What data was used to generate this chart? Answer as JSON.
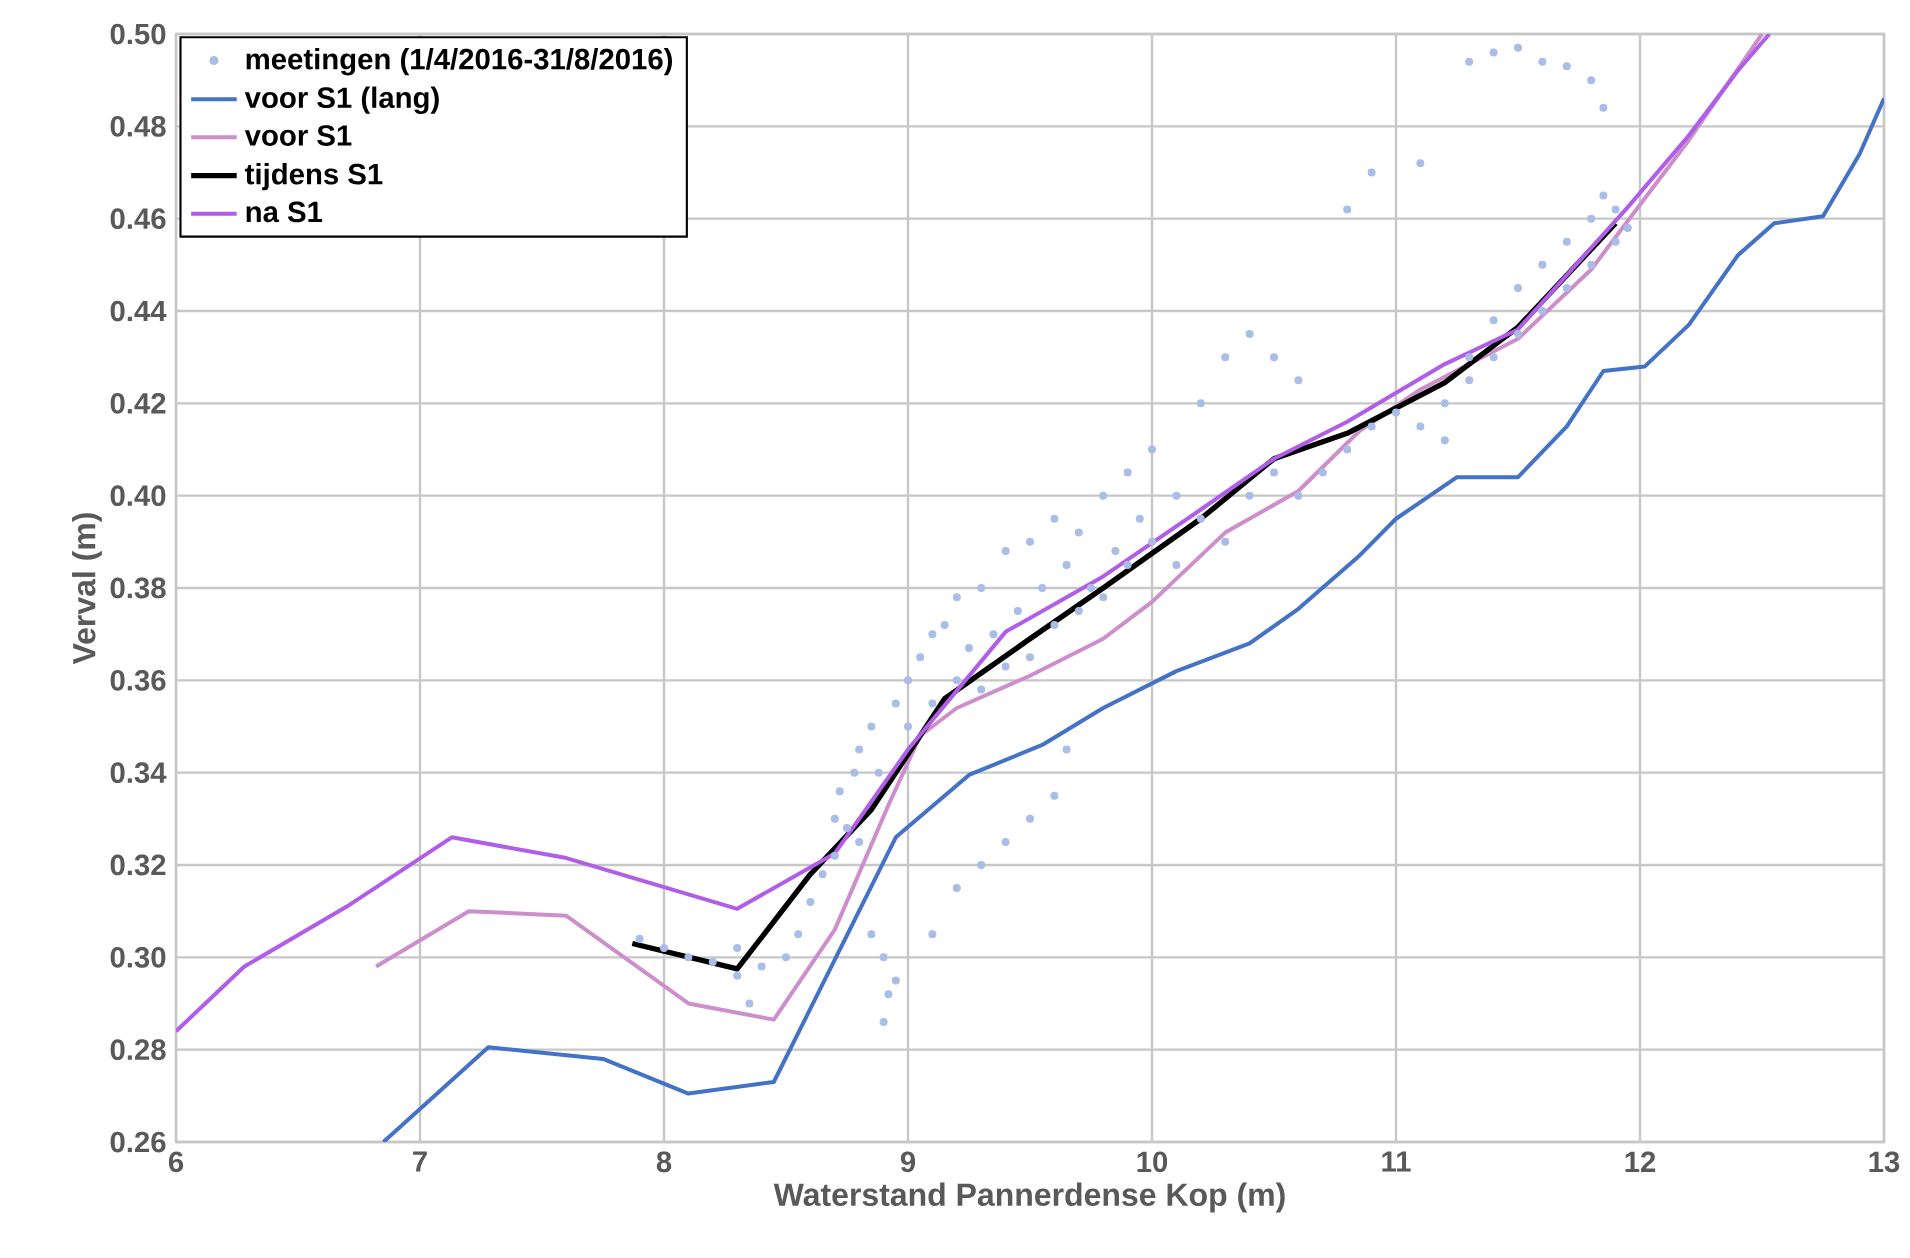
{
  "chart_data": {
    "type": "line",
    "xlabel": "Waterstand Pannerdense Kop (m)",
    "ylabel": "Verval (m)",
    "xlim": [
      6,
      13
    ],
    "xticks": [
      6,
      7,
      8,
      9,
      10,
      11,
      12,
      13
    ],
    "ylim": [
      0.26,
      0.5
    ],
    "yticks": [
      {
        "value": 0.26,
        "label": "0.26"
      },
      {
        "value": 0.28,
        "label": "0.28"
      },
      {
        "value": 0.3,
        "label": "0.30"
      },
      {
        "value": 0.32,
        "label": "0.32"
      },
      {
        "value": 0.34,
        "label": "0.34"
      },
      {
        "value": 0.36,
        "label": "0.36"
      },
      {
        "value": 0.38,
        "label": "0.38"
      },
      {
        "value": 0.4,
        "label": "0.40"
      },
      {
        "value": 0.42,
        "label": "0.42"
      },
      {
        "value": 0.44,
        "label": "0.44"
      },
      {
        "value": 0.46,
        "label": "0.46"
      },
      {
        "value": 0.48,
        "label": "0.48"
      },
      {
        "value": 0.5,
        "label": "0.50"
      }
    ],
    "grid": true,
    "legend": "top left",
    "series": [
      {
        "name": "meetingen (1/4/2016-31/8/2016)",
        "type": "scatter",
        "color": "#a9bde6",
        "x": [
          7.9,
          8.0,
          8.1,
          8.2,
          8.3,
          8.3,
          8.35,
          8.4,
          8.5,
          8.55,
          8.6,
          8.65,
          8.7,
          8.7,
          8.72,
          8.75,
          8.78,
          8.8,
          8.8,
          8.85,
          8.88,
          8.9,
          8.9,
          8.92,
          8.95,
          9.0,
          9.0,
          9.05,
          9.1,
          9.1,
          9.15,
          9.2,
          9.2,
          9.25,
          9.3,
          9.3,
          9.35,
          9.4,
          9.4,
          9.45,
          9.5,
          9.5,
          9.55,
          9.6,
          9.6,
          9.65,
          9.7,
          9.7,
          9.75,
          9.8,
          9.8,
          9.85,
          9.9,
          9.9,
          9.95,
          10.0,
          10.0,
          10.1,
          10.1,
          10.2,
          10.2,
          10.3,
          10.3,
          10.4,
          10.4,
          10.5,
          10.5,
          10.6,
          10.6,
          10.7,
          10.8,
          10.9,
          11.0,
          11.1,
          11.2,
          11.2,
          11.3,
          11.3,
          11.4,
          11.4,
          11.5,
          11.5,
          11.6,
          11.6,
          11.7,
          11.7,
          11.8,
          11.8,
          11.85,
          11.9,
          11.9,
          11.95,
          11.3,
          11.4,
          11.5,
          11.6,
          11.7,
          11.8,
          11.85,
          10.8,
          10.9,
          11.1,
          9.3,
          9.4,
          9.5,
          9.6,
          9.65,
          9.2,
          9.1,
          8.95,
          8.85
        ],
        "values": [
          0.304,
          0.302,
          0.3,
          0.299,
          0.296,
          0.302,
          0.29,
          0.298,
          0.3,
          0.305,
          0.312,
          0.318,
          0.322,
          0.33,
          0.336,
          0.328,
          0.34,
          0.345,
          0.325,
          0.35,
          0.34,
          0.3,
          0.286,
          0.292,
          0.355,
          0.35,
          0.36,
          0.365,
          0.355,
          0.37,
          0.372,
          0.36,
          0.378,
          0.367,
          0.358,
          0.38,
          0.37,
          0.363,
          0.388,
          0.375,
          0.365,
          0.39,
          0.38,
          0.372,
          0.395,
          0.385,
          0.375,
          0.392,
          0.38,
          0.378,
          0.4,
          0.388,
          0.385,
          0.405,
          0.395,
          0.39,
          0.41,
          0.385,
          0.4,
          0.395,
          0.42,
          0.39,
          0.43,
          0.4,
          0.435,
          0.405,
          0.43,
          0.4,
          0.425,
          0.405,
          0.41,
          0.415,
          0.418,
          0.415,
          0.42,
          0.412,
          0.425,
          0.43,
          0.43,
          0.438,
          0.435,
          0.445,
          0.44,
          0.45,
          0.445,
          0.455,
          0.45,
          0.46,
          0.465,
          0.455,
          0.462,
          0.458,
          0.494,
          0.496,
          0.497,
          0.494,
          0.493,
          0.49,
          0.484,
          0.462,
          0.47,
          0.472,
          0.32,
          0.325,
          0.33,
          0.335,
          0.345,
          0.315,
          0.305,
          0.295,
          0.305
        ]
      },
      {
        "name": "voor S1 (lang)",
        "color": "#4472c4",
        "x": [
          6.85,
          7.28,
          7.75,
          8.1,
          8.45,
          8.95,
          9.25,
          9.55,
          9.8,
          10.1,
          10.4,
          10.6,
          10.85,
          11.0,
          11.25,
          11.5,
          11.7,
          11.85,
          12.02,
          12.2,
          12.4,
          12.55,
          12.75,
          12.9,
          13.0
        ],
        "values": [
          0.26,
          0.2805,
          0.278,
          0.2705,
          0.273,
          0.326,
          0.3395,
          0.346,
          0.354,
          0.362,
          0.368,
          0.3755,
          0.387,
          0.395,
          0.404,
          0.404,
          0.415,
          0.427,
          0.428,
          0.437,
          0.452,
          0.459,
          0.4605,
          0.474,
          0.486
        ]
      },
      {
        "name": "voor S1",
        "color": "#cc8fcc",
        "x": [
          6.82,
          7.2,
          7.6,
          8.1,
          8.45,
          8.7,
          8.92,
          9.05,
          9.2,
          9.5,
          9.8,
          10.0,
          10.3,
          10.6,
          10.85,
          11.1,
          11.5,
          11.8,
          12.0,
          12.2,
          12.5
        ],
        "values": [
          0.298,
          0.31,
          0.309,
          0.29,
          0.2865,
          0.306,
          0.333,
          0.348,
          0.354,
          0.361,
          0.369,
          0.377,
          0.392,
          0.401,
          0.414,
          0.423,
          0.434,
          0.449,
          0.463,
          0.477,
          0.5
        ]
      },
      {
        "name": "tijdens S1",
        "color": "#000000",
        "x": [
          7.87,
          8.3,
          8.6,
          8.85,
          9.15,
          9.5,
          9.8,
          10.2,
          10.5,
          10.8,
          11.2,
          11.5,
          11.9
        ],
        "values": [
          0.303,
          0.2975,
          0.318,
          0.332,
          0.356,
          0.369,
          0.38,
          0.395,
          0.408,
          0.4135,
          0.4245,
          0.4365,
          0.459
        ]
      },
      {
        "name": "na S1",
        "color": "#b05ee8",
        "x": [
          6.0,
          6.28,
          6.7,
          7.13,
          7.6,
          8.3,
          8.7,
          9.0,
          9.4,
          9.8,
          10.2,
          10.5,
          10.8,
          11.2,
          11.5,
          11.95,
          12.2,
          12.4,
          12.53
        ],
        "values": [
          0.284,
          0.298,
          0.311,
          0.326,
          0.3215,
          0.3105,
          0.3225,
          0.345,
          0.3705,
          0.3825,
          0.397,
          0.408,
          0.416,
          0.4285,
          0.436,
          0.4625,
          0.478,
          0.492,
          0.5
        ]
      }
    ]
  }
}
